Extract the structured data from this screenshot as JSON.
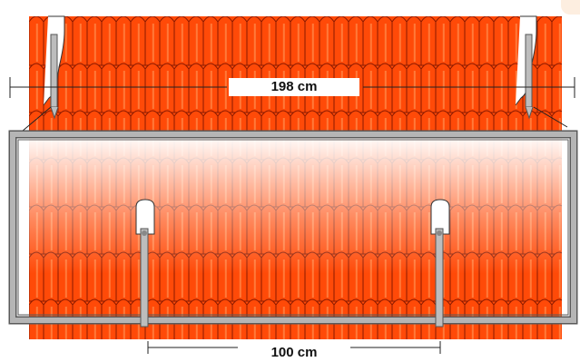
{
  "dimensions": {
    "top_width_label": "198 cm",
    "bottom_width_label": "100 cm"
  },
  "colors": {
    "tile": "#ff4a08",
    "tile_edge": "#8a1a00",
    "frame": "#a9a9a9",
    "frame_edge": "#5a5a5a",
    "hook": "#bdbdbd",
    "dimension_line": "#222222"
  }
}
